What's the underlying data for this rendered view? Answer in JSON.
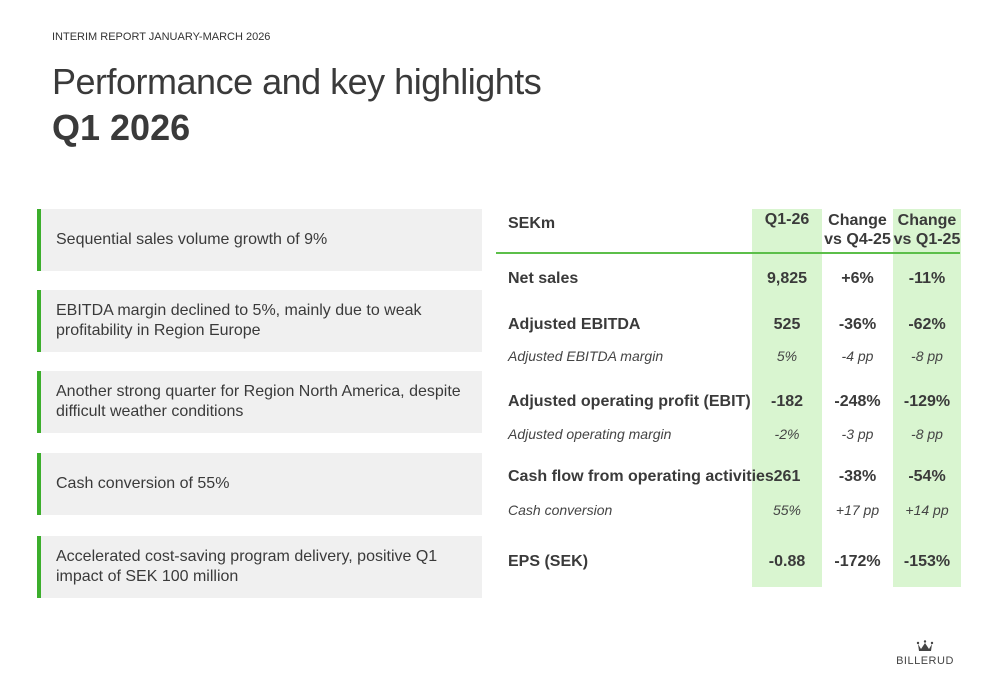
{
  "header": {
    "kicker": "INTERIM REPORT JANUARY-MARCH 2026",
    "title": "Performance and key highlights",
    "subtitle": "Q1 2026"
  },
  "highlights": [
    "Sequential sales volume growth of 9%",
    "EBITDA margin declined to 5%, mainly due to weak profitability in Region Europe",
    "Another strong quarter for Region North America, despite difficult weather conditions",
    "Cash conversion of 55%",
    "Accelerated cost-saving program delivery, positive Q1 impact of SEK 100 million"
  ],
  "table": {
    "columns": [
      "SEKm",
      "Q1-26",
      "Change vs Q4-25",
      "Change vs Q1-25"
    ],
    "col_lines": [
      [
        "Change",
        "vs Q4-25"
      ],
      [
        "Change",
        "vs Q1-25"
      ]
    ],
    "rows": [
      {
        "label": "Net sales",
        "values": [
          "9,825",
          "+6%",
          "-11%"
        ],
        "style": "bold"
      },
      {
        "label": "Adjusted EBITDA",
        "values": [
          "525",
          "-36%",
          "-62%"
        ],
        "style": "bold"
      },
      {
        "label": "Adjusted EBITDA margin",
        "values": [
          "5%",
          "-4 pp",
          "-8 pp"
        ],
        "style": "italic"
      },
      {
        "label": "Adjusted operating profit (EBIT)",
        "values": [
          "-182",
          "-248%",
          "-129%"
        ],
        "style": "bold"
      },
      {
        "label": "Adjusted operating margin",
        "values": [
          "-2%",
          "-3 pp",
          "-8 pp"
        ],
        "style": "italic"
      },
      {
        "label": "Cash flow from operating activities",
        "values": [
          "261",
          "-38%",
          "-54%"
        ],
        "style": "bold"
      },
      {
        "label": "Cash conversion",
        "values": [
          "55%",
          "+17 pp",
          "+14 pp"
        ],
        "style": "italic"
      },
      {
        "label": "EPS (SEK)",
        "values": [
          "-0.88",
          "-172%",
          "-153%"
        ],
        "style": "bold"
      }
    ]
  },
  "logo": {
    "text": "BILLERUD",
    "icon": "crown-icon"
  },
  "colors": {
    "accent": "#3cae2c",
    "highlight_column": "#d9f5d0",
    "panel": "#f0f0f0"
  }
}
